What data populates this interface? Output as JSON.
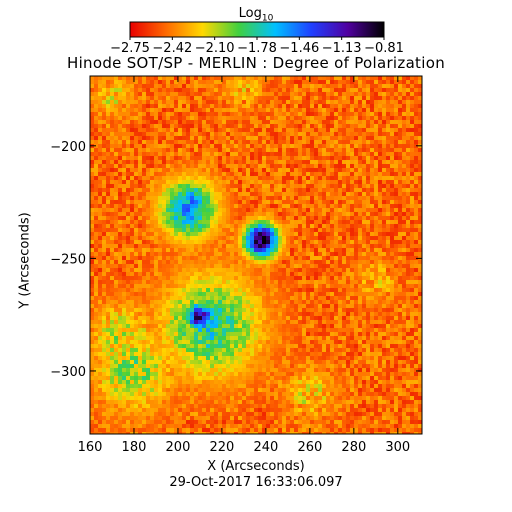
{
  "colorbar": {
    "title_main": "Log",
    "title_sub": "10",
    "tick_labels": [
      "-2.75",
      "-2.42",
      "-2.10",
      "-1.78",
      "-1.46",
      "-1.13",
      "-0.81"
    ],
    "colors": [
      "#e80000",
      "#ff6a00",
      "#ffd800",
      "#40d040",
      "#00c0ff",
      "#2040ff",
      "#5000a0",
      "#000000"
    ]
  },
  "title": "Hinode SOT/SP - MERLIN : Degree of Polarization",
  "footer": "29-Oct-2017 16:33:06.097",
  "chart_data": {
    "type": "heatmap",
    "title": "Hinode SOT/SP - MERLIN : Degree of Polarization",
    "xlabel": "X (Arcseconds)",
    "ylabel": "Y (Arcseconds)",
    "xlim": [
      160,
      311
    ],
    "ylim": [
      -328,
      -169
    ],
    "x_ticks": [
      160,
      180,
      200,
      220,
      240,
      260,
      280,
      300
    ],
    "y_ticks": [
      -200,
      -250,
      -300
    ],
    "colorbar_range": [
      -2.75,
      -0.81
    ],
    "grid": false,
    "features": [
      {
        "x": 238,
        "y": -242,
        "r": 6,
        "level": -0.9
      },
      {
        "x": 210,
        "y": -276,
        "r": 5,
        "level": -1.0
      },
      {
        "x": 205,
        "y": -228,
        "r": 10,
        "level": -1.5
      },
      {
        "x": 215,
        "y": -280,
        "r": 18,
        "level": -1.8
      },
      {
        "x": 180,
        "y": -300,
        "r": 14,
        "level": -2.0
      },
      {
        "x": 175,
        "y": -285,
        "r": 12,
        "level": -2.1
      },
      {
        "x": 260,
        "y": -310,
        "r": 9,
        "level": -2.2
      },
      {
        "x": 230,
        "y": -175,
        "r": 8,
        "level": -2.3
      },
      {
        "x": 290,
        "y": -260,
        "r": 8,
        "level": -2.3
      },
      {
        "x": 170,
        "y": -178,
        "r": 7,
        "level": -2.2
      }
    ]
  }
}
